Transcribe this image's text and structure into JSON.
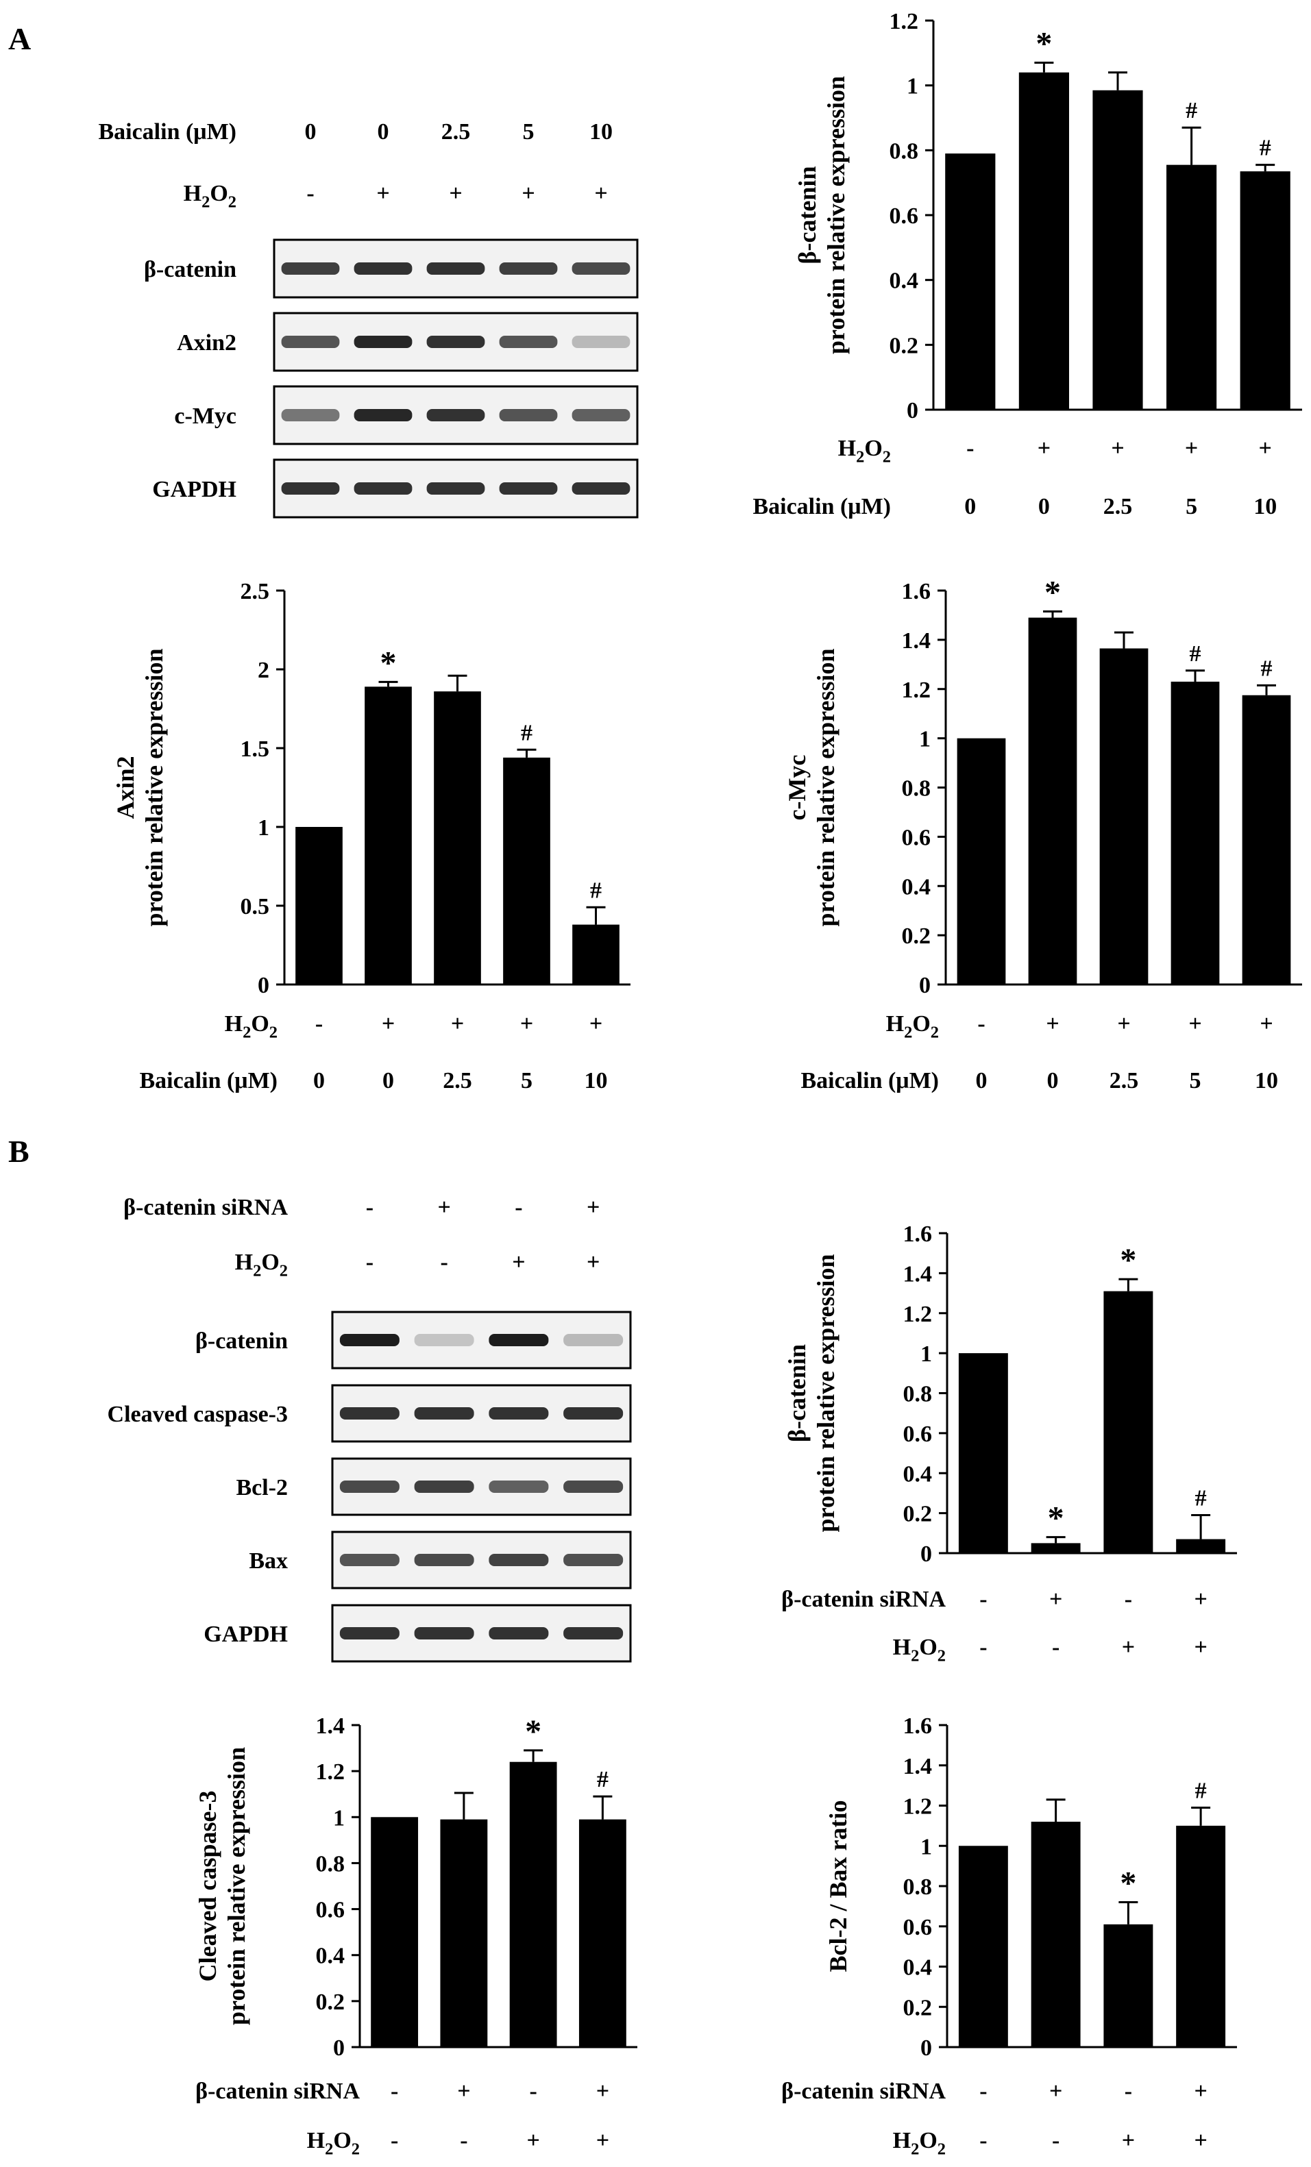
{
  "panels": {
    "A": {
      "letter": "A"
    },
    "B": {
      "letter": "B"
    }
  },
  "blotA": {
    "treatments": [
      {
        "label": "Baicalin (μM)",
        "values": [
          "0",
          "0",
          "2.5",
          "5",
          "10"
        ]
      },
      {
        "label": "H2O2",
        "values": [
          "-",
          "+",
          "+",
          "+",
          "+"
        ]
      }
    ],
    "bands": [
      "β-catenin",
      "Axin2",
      "c-Myc",
      "GAPDH"
    ]
  },
  "blotB": {
    "treatments": [
      {
        "label": "β-catenin siRNA",
        "values": [
          "-",
          "+",
          "-",
          "+"
        ]
      },
      {
        "label": "H2O2",
        "values": [
          "-",
          "-",
          "+",
          "+"
        ]
      }
    ],
    "bands": [
      "β-catenin",
      "Cleaved caspase-3",
      "Bcl-2",
      "Bax",
      "GAPDH"
    ]
  },
  "chart_data": [
    {
      "id": "A-bcatenin",
      "type": "bar",
      "panel": "A",
      "ylabel_lines": [
        "β-catenin",
        "protein relative expression"
      ],
      "ylim": [
        0,
        1.2
      ],
      "yticks": [
        0,
        0.2,
        0.4,
        0.6,
        0.8,
        1,
        1.2
      ],
      "values": [
        0.79,
        1.04,
        0.985,
        0.755,
        0.735
      ],
      "errors": [
        0.0,
        0.03,
        0.055,
        0.115,
        0.02
      ],
      "marks": [
        "",
        "*",
        "",
        "#",
        "#"
      ],
      "conditions": [
        {
          "label": "H2O2",
          "values": [
            "-",
            "+",
            "+",
            "+",
            "+"
          ]
        },
        {
          "label": "Baicalin (μM)",
          "values": [
            "0",
            "0",
            "2.5",
            "5",
            "10"
          ]
        }
      ]
    },
    {
      "id": "A-axin2",
      "type": "bar",
      "panel": "A",
      "ylabel_lines": [
        "Axin2",
        "protein relative expression"
      ],
      "ylim": [
        0,
        2.5
      ],
      "yticks": [
        0,
        0.5,
        1,
        1.5,
        2,
        2.5
      ],
      "values": [
        1.0,
        1.89,
        1.86,
        1.44,
        0.38
      ],
      "errors": [
        0.0,
        0.03,
        0.1,
        0.05,
        0.11
      ],
      "marks": [
        "",
        "*",
        "",
        "#",
        "#"
      ],
      "conditions": [
        {
          "label": "H2O2",
          "values": [
            "-",
            "+",
            "+",
            "+",
            "+"
          ]
        },
        {
          "label": "Baicalin (μM)",
          "values": [
            "0",
            "0",
            "2.5",
            "5",
            "10"
          ]
        }
      ]
    },
    {
      "id": "A-cmyc",
      "type": "bar",
      "panel": "A",
      "ylabel_lines": [
        "c-Myc",
        "protein relative expression"
      ],
      "ylim": [
        0,
        1.6
      ],
      "yticks": [
        0,
        0.2,
        0.4,
        0.6,
        0.8,
        1,
        1.2,
        1.4,
        1.6
      ],
      "values": [
        1.0,
        1.49,
        1.365,
        1.23,
        1.175
      ],
      "errors": [
        0.0,
        0.025,
        0.065,
        0.045,
        0.04
      ],
      "marks": [
        "",
        "*",
        "",
        "#",
        "#"
      ],
      "conditions": [
        {
          "label": "H2O2",
          "values": [
            "-",
            "+",
            "+",
            "+",
            "+"
          ]
        },
        {
          "label": "Baicalin (μM)",
          "values": [
            "0",
            "0",
            "2.5",
            "5",
            "10"
          ]
        }
      ]
    },
    {
      "id": "B-bcatenin",
      "type": "bar",
      "panel": "B",
      "ylabel_lines": [
        "β-catenin",
        "protein relative expression"
      ],
      "ylim": [
        0,
        1.6
      ],
      "yticks": [
        0,
        0.2,
        0.4,
        0.6,
        0.8,
        1,
        1.2,
        1.4,
        1.6
      ],
      "values": [
        1.0,
        0.05,
        1.31,
        0.07
      ],
      "errors": [
        0.0,
        0.03,
        0.06,
        0.12
      ],
      "marks": [
        "",
        "*",
        "*",
        "#"
      ],
      "conditions": [
        {
          "label": "β-catenin siRNA",
          "values": [
            "-",
            "+",
            "-",
            "+"
          ]
        },
        {
          "label": "H2O2",
          "values": [
            "-",
            "-",
            "+",
            "+"
          ]
        }
      ]
    },
    {
      "id": "B-caspase3",
      "type": "bar",
      "panel": "B",
      "ylabel_lines": [
        "Cleaved caspase-3",
        "protein relative expression"
      ],
      "ylim": [
        0,
        1.4
      ],
      "yticks": [
        0,
        0.2,
        0.4,
        0.6,
        0.8,
        1,
        1.2,
        1.4
      ],
      "values": [
        1.0,
        0.99,
        1.24,
        0.99
      ],
      "errors": [
        0.0,
        0.115,
        0.05,
        0.1
      ],
      "marks": [
        "",
        "",
        "*",
        "#"
      ],
      "conditions": [
        {
          "label": "β-catenin siRNA",
          "values": [
            "-",
            "+",
            "-",
            "+"
          ]
        },
        {
          "label": "H2O2",
          "values": [
            "-",
            "-",
            "+",
            "+"
          ]
        }
      ]
    },
    {
      "id": "B-bcl2bax",
      "type": "bar",
      "panel": "B",
      "ylabel_lines": [
        "Bcl-2 / Bax ratio"
      ],
      "ylim": [
        0,
        1.6
      ],
      "yticks": [
        0,
        0.2,
        0.4,
        0.6,
        0.8,
        1,
        1.2,
        1.4,
        1.6
      ],
      "values": [
        1.0,
        1.12,
        0.61,
        1.1
      ],
      "errors": [
        0.0,
        0.11,
        0.11,
        0.09
      ],
      "marks": [
        "",
        "",
        "*",
        "#"
      ],
      "conditions": [
        {
          "label": "β-catenin siRNA",
          "values": [
            "-",
            "+",
            "-",
            "+"
          ]
        },
        {
          "label": "H2O2",
          "values": [
            "-",
            "-",
            "+",
            "+"
          ]
        }
      ]
    }
  ]
}
